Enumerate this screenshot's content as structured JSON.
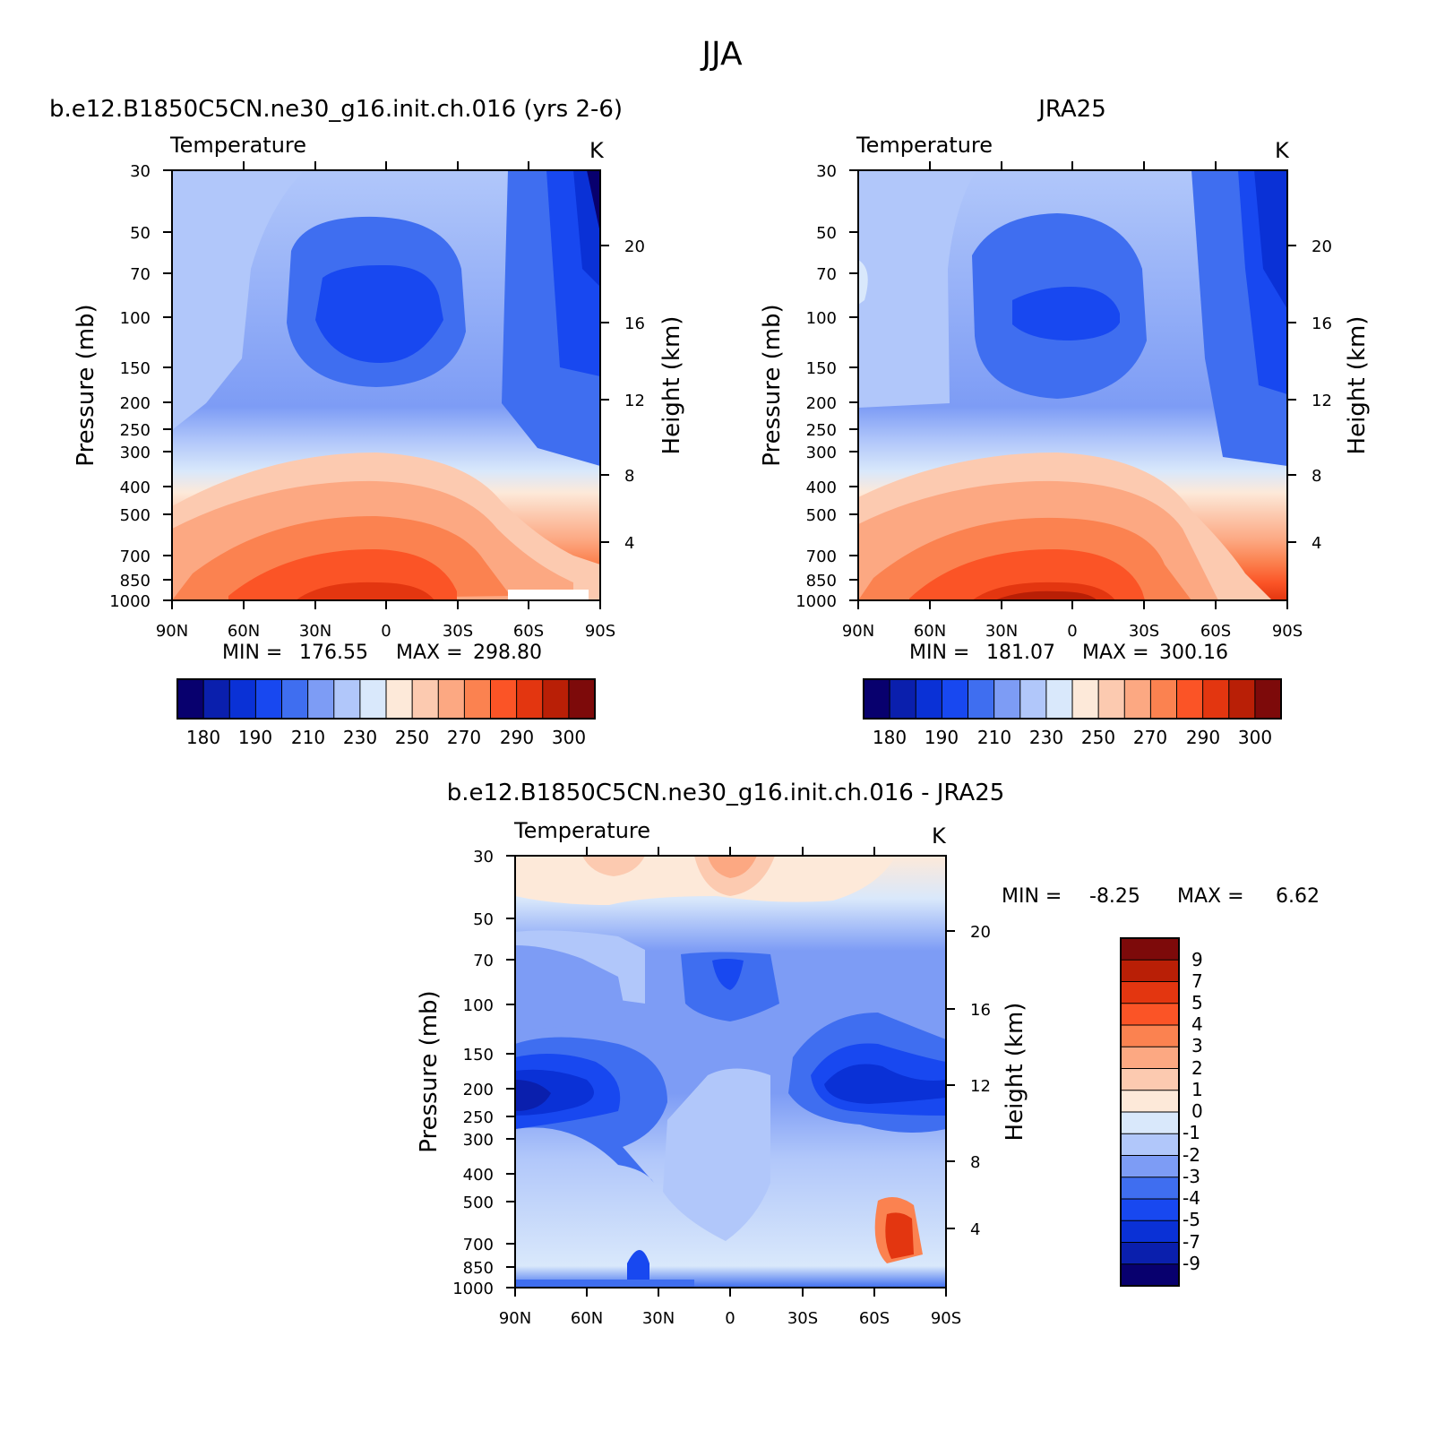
{
  "figure": {
    "title": "JJA"
  },
  "colors": {
    "abs_palette": [
      "#08006e",
      "#0a1fad",
      "#0a31d6",
      "#1848f0",
      "#3f6ef0",
      "#7d9cf5",
      "#b1c7fa",
      "#d9e8fb",
      "#fde9d9",
      "#fccab0",
      "#fca882",
      "#fb8250",
      "#fb5426",
      "#e33610",
      "#b91f06",
      "#7d0a0a"
    ],
    "diff_palette": [
      "#08006e",
      "#0a1fad",
      "#0a31d6",
      "#1848f0",
      "#3f6ef0",
      "#7d9cf5",
      "#b1c7fa",
      "#d9e8fb",
      "#fde9d9",
      "#fccab0",
      "#fca882",
      "#fb8250",
      "#fb5426",
      "#e33610",
      "#b91f06",
      "#7d0a0a"
    ]
  },
  "axes_text": {
    "pressure_label": "Pressure  (mb)",
    "height_label": "Height  (km)",
    "pressure_ticks": [
      "30",
      "50",
      "70",
      "100",
      "150",
      "200",
      "250",
      "300",
      "400",
      "500",
      "700",
      "850",
      "1000"
    ],
    "height_ticks": [
      "20",
      "16",
      "12",
      "8",
      "4"
    ],
    "lat_ticks": [
      "90N",
      "60N",
      "30N",
      "0",
      "30S",
      "60S",
      "90S"
    ]
  },
  "chart_data": [
    {
      "type": "contour",
      "panel": "model",
      "title": "b.e12.B1850C5CN.ne30_g16.init.ch.016 (yrs 2-6)",
      "variable": "Temperature",
      "units": "K",
      "x": [
        90,
        60,
        30,
        0,
        -30,
        -60,
        -90
      ],
      "x_labels": [
        "90N",
        "60N",
        "30N",
        "0",
        "30S",
        "60S",
        "90S"
      ],
      "y_pressure": [
        30,
        50,
        70,
        100,
        150,
        200,
        250,
        300,
        400,
        500,
        700,
        850,
        1000
      ],
      "y_height_km": [
        20,
        16,
        12,
        8,
        4
      ],
      "ylim": [
        1000,
        30
      ],
      "stats": {
        "min_label": "MIN =",
        "min": "176.55",
        "max_label": "MAX =",
        "max": "298.80"
      },
      "colorbar": {
        "orientation": "horizontal",
        "labels": [
          "180",
          "190",
          "210",
          "230",
          "250",
          "270",
          "290",
          "300"
        ],
        "n_colors": 16
      }
    },
    {
      "type": "contour",
      "panel": "obs",
      "title": "JRA25",
      "variable": "Temperature",
      "units": "K",
      "x": [
        90,
        60,
        30,
        0,
        -30,
        -60,
        -90
      ],
      "x_labels": [
        "90N",
        "60N",
        "30N",
        "0",
        "30S",
        "60S",
        "90S"
      ],
      "y_pressure": [
        30,
        50,
        70,
        100,
        150,
        200,
        250,
        300,
        400,
        500,
        700,
        850,
        1000
      ],
      "y_height_km": [
        20,
        16,
        12,
        8,
        4
      ],
      "ylim": [
        1000,
        30
      ],
      "stats": {
        "min_label": "MIN =",
        "min": "181.07",
        "max_label": "MAX =",
        "max": "300.16"
      },
      "colorbar": {
        "orientation": "horizontal",
        "labels": [
          "180",
          "190",
          "210",
          "230",
          "250",
          "270",
          "290",
          "300"
        ],
        "n_colors": 16
      }
    },
    {
      "type": "contour",
      "panel": "difference",
      "title": "b.e12.B1850C5CN.ne30_g16.init.ch.016 - JRA25",
      "variable": "Temperature",
      "units": "K",
      "x": [
        90,
        60,
        30,
        0,
        -30,
        -60,
        -90
      ],
      "x_labels": [
        "90N",
        "60N",
        "30N",
        "0",
        "30S",
        "60S",
        "90S"
      ],
      "y_pressure": [
        30,
        50,
        70,
        100,
        150,
        200,
        250,
        300,
        400,
        500,
        700,
        850,
        1000
      ],
      "y_height_km": [
        20,
        16,
        12,
        8,
        4
      ],
      "ylim": [
        1000,
        30
      ],
      "stats": {
        "min_label": "MIN =",
        "min": "-8.25",
        "max_label": "MAX =",
        "max": "6.62"
      },
      "colorbar": {
        "orientation": "vertical",
        "labels": [
          "9",
          "7",
          "5",
          "4",
          "3",
          "2",
          "1",
          "0",
          "-1",
          "-2",
          "-3",
          "-4",
          "-5",
          "-7",
          "-9"
        ],
        "n_colors": 16
      }
    }
  ]
}
